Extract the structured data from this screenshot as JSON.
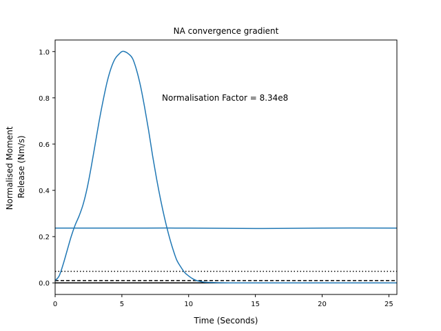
{
  "chart_data": {
    "type": "line",
    "title": "NA convergence gradient",
    "xlabel": "Time (Seconds)",
    "ylabel_lines": [
      "Normalised Moment",
      "Release (Nm/s)"
    ],
    "xlim": [
      0,
      25.6
    ],
    "ylim": [
      -0.05,
      1.05
    ],
    "xticks": [
      0,
      5,
      10,
      15,
      20,
      25
    ],
    "yticks": [
      0.0,
      0.2,
      0.4,
      0.6,
      0.8,
      1.0
    ],
    "xtick_labels": [
      "0",
      "5",
      "10",
      "15",
      "20",
      "25"
    ],
    "ytick_labels": [
      "0.0",
      "0.2",
      "0.4",
      "0.6",
      "0.8",
      "1.0"
    ],
    "annotation": {
      "text": "Normalisation Factor = 8.34e8",
      "x": 8.0,
      "y": 0.8
    },
    "grid": false,
    "colors": {
      "series": "#1f77b4",
      "reference_lines": "#000000"
    },
    "series": [
      {
        "x": [
          0,
          0.3,
          0.6,
          0.9,
          1.2,
          1.5,
          1.8,
          2.1,
          2.4,
          2.7,
          3.0,
          3.3,
          3.6,
          3.9,
          4.2,
          4.5,
          4.8,
          5.0,
          5.2,
          5.5,
          5.8,
          6.1,
          6.4,
          6.7,
          7.0,
          7.3,
          7.6,
          7.9,
          8.2,
          8.5,
          8.8,
          9.1,
          9.4,
          9.7,
          10.0,
          10.3,
          10.6,
          10.9,
          11.2,
          11.5,
          12.0,
          13.0,
          15.0,
          20.0,
          25.6
        ],
        "y": [
          0.01,
          0.03,
          0.08,
          0.14,
          0.2,
          0.25,
          0.29,
          0.34,
          0.41,
          0.5,
          0.6,
          0.7,
          0.79,
          0.87,
          0.93,
          0.97,
          0.99,
          1.0,
          1.0,
          0.99,
          0.97,
          0.92,
          0.85,
          0.76,
          0.66,
          0.55,
          0.45,
          0.36,
          0.28,
          0.21,
          0.15,
          0.1,
          0.07,
          0.045,
          0.03,
          0.018,
          0.01,
          0.006,
          0.003,
          0.002,
          0.001,
          0.0,
          0.0,
          0.0,
          0.0
        ]
      },
      {
        "x": [
          0,
          5,
          10,
          15,
          20,
          25.6
        ],
        "y": [
          0.237,
          0.237,
          0.237,
          0.235,
          0.237,
          0.237
        ]
      }
    ],
    "reference_lines": [
      {
        "y": 0.05,
        "style": "dotted"
      },
      {
        "y": 0.01,
        "style": "dashed"
      },
      {
        "y": 0.0,
        "style": "solid"
      }
    ]
  }
}
